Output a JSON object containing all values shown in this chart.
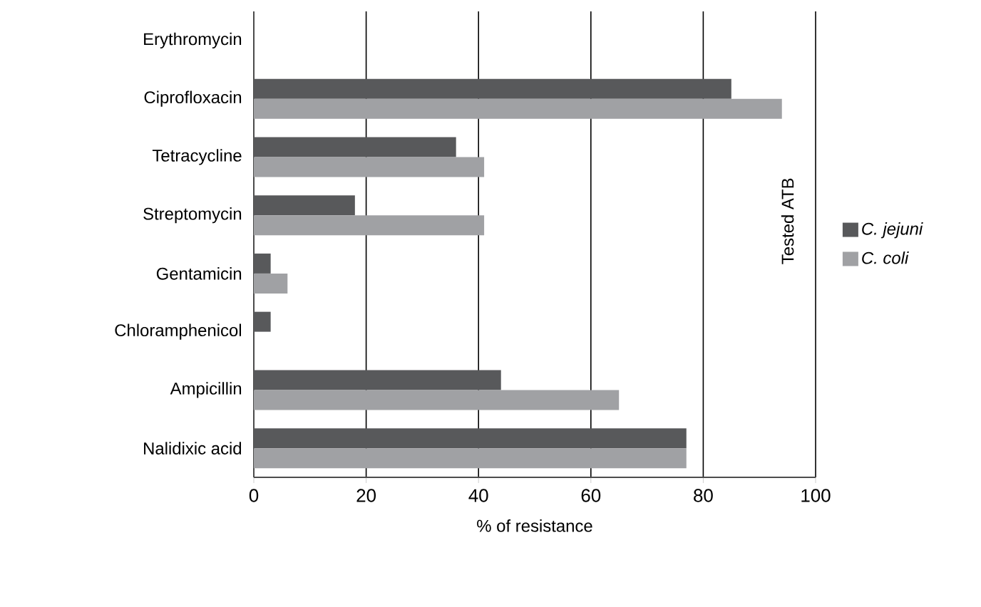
{
  "chart_data": {
    "type": "bar",
    "orientation": "horizontal",
    "xlabel": "% of resistance",
    "ylabel": "Tested ATB",
    "categories": [
      "Erythromycin",
      "Ciprofloxacin",
      "Tetracycline",
      "Streptomycin",
      "Gentamicin",
      "Chloramphenicol",
      "Ampicillin",
      "Nalidixic acid"
    ],
    "series": [
      {
        "name": "C. jejuni",
        "color": "#58595b",
        "values": [
          0,
          85,
          36,
          18,
          3,
          3,
          44,
          77
        ]
      },
      {
        "name": "C. coli",
        "color": "#a0a1a4",
        "values": [
          0,
          94,
          41,
          41,
          6,
          0,
          65,
          77
        ]
      }
    ],
    "xlim": [
      0,
      100
    ],
    "xticks": [
      0,
      20,
      40,
      60,
      80,
      100
    ],
    "grid": "x",
    "legend": "right"
  }
}
